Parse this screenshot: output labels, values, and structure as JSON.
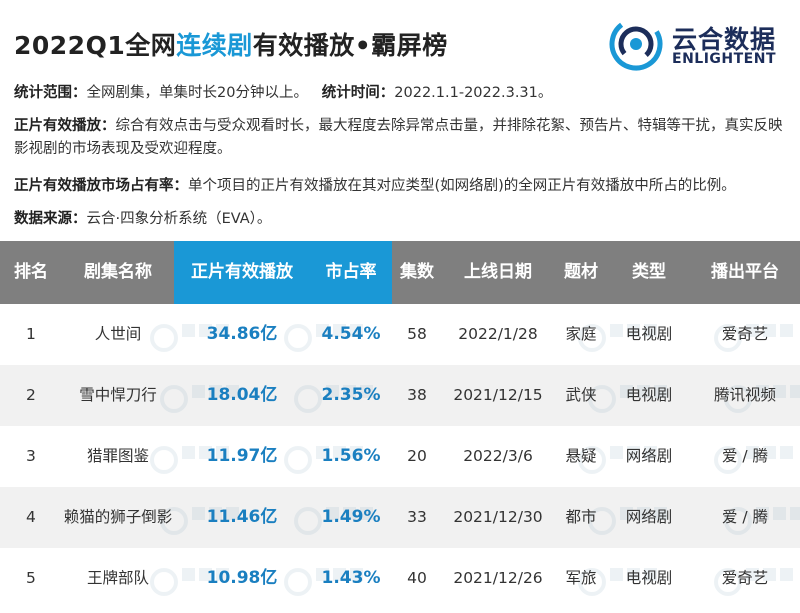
{
  "header": {
    "title_prefix": "2022Q1全网",
    "title_highlight": "连续剧",
    "title_suffix": "有效播放•霸屏榜",
    "logo_cn": "云合数据",
    "logo_en": "ENLIGHTENT"
  },
  "info": {
    "scope_label": "统计范围：",
    "scope_value": "全网剧集，单集时长20分钟以上。",
    "time_label": "统计时间：",
    "time_value": "2022.1.1-2022.3.31。",
    "effective_label": "正片有效播放：",
    "effective_value": "综合有效点击与受众观看时长，最大程度去除异常点击量，并排除花絮、预告片、特辑等干扰，真实反映影视剧的市场表现及受欢迎程度。",
    "share_label": "正片有效播放市场占有率：",
    "share_value": "单个项目的正片有效播放在其对应类型(如网络剧)的全网正片有效播放中所占的比例。",
    "source_label": "数据来源：",
    "source_value": "云合·四象分析系统（EVA）。"
  },
  "table": {
    "headers": [
      "排名",
      "剧集名称",
      "正片有效播放",
      "市占率",
      "集数",
      "上线日期",
      "题材",
      "类型",
      "播出平台"
    ],
    "rows": [
      {
        "rank": "1",
        "name": "人世间",
        "plays": "34.86亿",
        "share": "4.54%",
        "episodes": "58",
        "date": "2022/1/28",
        "genre": "家庭",
        "type": "电视剧",
        "platform": "爱奇艺"
      },
      {
        "rank": "2",
        "name": "雪中悍刀行",
        "plays": "18.04亿",
        "share": "2.35%",
        "episodes": "38",
        "date": "2021/12/15",
        "genre": "武侠",
        "type": "电视剧",
        "platform": "腾讯视频"
      },
      {
        "rank": "3",
        "name": "猎罪图鉴",
        "plays": "11.97亿",
        "share": "1.56%",
        "episodes": "20",
        "date": "2022/3/6",
        "genre": "悬疑",
        "type": "网络剧",
        "platform": "爱 / 腾"
      },
      {
        "rank": "4",
        "name": "赖猫的狮子倒影",
        "plays": "11.46亿",
        "share": "1.49%",
        "episodes": "33",
        "date": "2021/12/30",
        "genre": "都市",
        "type": "网络剧",
        "platform": "爱 / 腾"
      },
      {
        "rank": "5",
        "name": "王牌部队",
        "plays": "10.98亿",
        "share": "1.43%",
        "episodes": "40",
        "date": "2021/12/26",
        "genre": "军旅",
        "type": "电视剧",
        "platform": "爱奇艺"
      }
    ]
  },
  "colors": {
    "accent": "#1a98d6",
    "header_gray": "#7f7f7f",
    "row_alt": "#f1f1f1",
    "value_blue": "#1a7fc0",
    "logo_navy": "#1c2d5a"
  }
}
